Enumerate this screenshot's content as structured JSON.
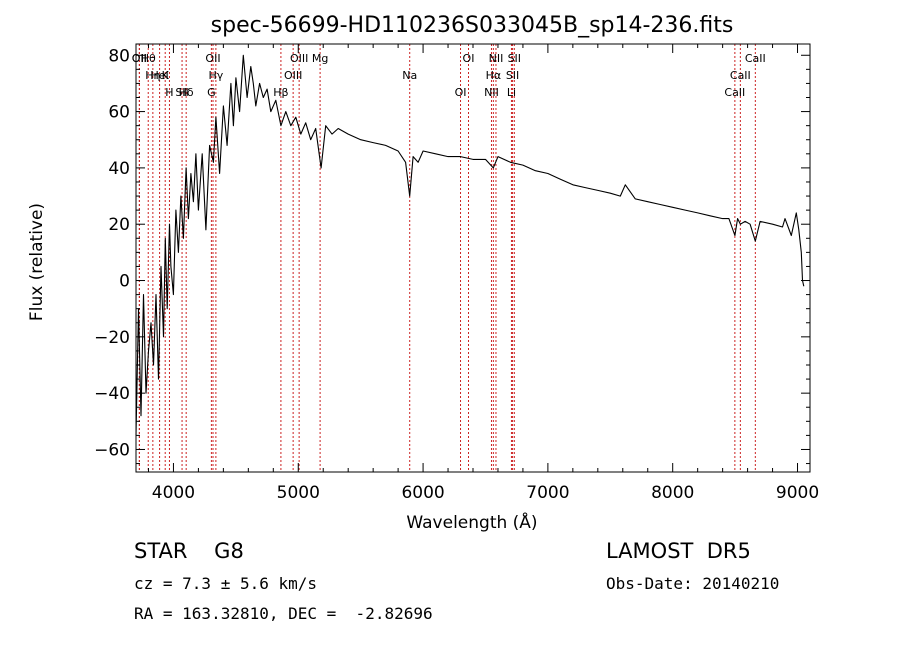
{
  "chart_data": {
    "type": "line",
    "title": "spec-56699-HD110236S033045B_sp14-236.fits",
    "xlabel": "Wavelength (Å)",
    "ylabel": "Flux (relative)",
    "xlim": [
      3700,
      9100
    ],
    "ylim": [
      -68,
      84
    ],
    "xticks": [
      4000,
      5000,
      6000,
      7000,
      8000,
      9000
    ],
    "xtick_labels": [
      "4000",
      "5000",
      "6000",
      "7000",
      "8000",
      "9000"
    ],
    "yticks": [
      -60,
      -40,
      -20,
      0,
      20,
      40,
      60,
      80
    ],
    "ytick_labels": [
      "−60",
      "−40",
      "−20",
      "0",
      "20",
      "40",
      "60",
      "80"
    ],
    "grid": false,
    "line_color": "#000000",
    "marker_color": "#cc2222",
    "series": [
      {
        "x": [
          3700,
          3720,
          3740,
          3760,
          3780,
          3800,
          3820,
          3840,
          3860,
          3880,
          3900,
          3920,
          3935,
          3950,
          3968,
          3980,
          4000,
          4020,
          4040,
          4060,
          4080,
          4101,
          4120,
          4140,
          4160,
          4180,
          4200,
          4230,
          4260,
          4290,
          4320,
          4340,
          4370,
          4400,
          4430,
          4460,
          4480,
          4500,
          4530,
          4560,
          4590,
          4620,
          4640,
          4660,
          4690,
          4720,
          4750,
          4780,
          4820,
          4861,
          4900,
          4940,
          4980,
          5020,
          5060,
          5100,
          5140,
          5183,
          5220,
          5270,
          5320,
          5400,
          5500,
          5600,
          5700,
          5800,
          5860,
          5893,
          5920,
          5960,
          6000,
          6100,
          6200,
          6300,
          6400,
          6500,
          6563,
          6600,
          6700,
          6800,
          6900,
          7000,
          7100,
          7200,
          7300,
          7400,
          7500,
          7580,
          7620,
          7700,
          7800,
          7900,
          8000,
          8100,
          8200,
          8300,
          8400,
          8450,
          8498,
          8520,
          8542,
          8580,
          8620,
          8662,
          8700,
          8800,
          8880,
          8900,
          8950,
          8990,
          9010,
          9030,
          9040,
          9050
        ],
        "y": [
          -55,
          -10,
          -48,
          -5,
          -40,
          -25,
          -15,
          -30,
          -5,
          -35,
          5,
          -20,
          15,
          -10,
          20,
          5,
          -5,
          25,
          10,
          30,
          15,
          40,
          22,
          38,
          28,
          45,
          25,
          45,
          18,
          48,
          42,
          58,
          38,
          62,
          48,
          70,
          55,
          72,
          60,
          80,
          65,
          76,
          70,
          62,
          70,
          65,
          68,
          60,
          64,
          55,
          60,
          55,
          58,
          52,
          56,
          50,
          54,
          40,
          55,
          52,
          54,
          52,
          50,
          49,
          48,
          46,
          42,
          30,
          44,
          42,
          46,
          45,
          44,
          44,
          43,
          43,
          40,
          44,
          42,
          41,
          39,
          38,
          36,
          34,
          33,
          32,
          31,
          30,
          34,
          29,
          28,
          27,
          26,
          25,
          24,
          23,
          22,
          22,
          16,
          22,
          20,
          21,
          20,
          14,
          21,
          20,
          19,
          22,
          16,
          24,
          18,
          10,
          0,
          -2
        ]
      }
    ],
    "line_markers": [
      {
        "label": "Hθ",
        "x": 3798
      },
      {
        "label": "K",
        "x": 3934
      },
      {
        "label": "Hδ",
        "x": 4102
      },
      {
        "label": "OII",
        "x": 3727
      },
      {
        "label": "HeI",
        "x": 3889
      },
      {
        "label": "SII",
        "x": 4069
      },
      {
        "label": "OII",
        "x": 3727
      },
      {
        "label": "Hη",
        "x": 3835
      },
      {
        "label": "H",
        "x": 3968
      },
      {
        "label": "OII",
        "x": 4317
      },
      {
        "label": "Hγ",
        "x": 4340
      },
      {
        "label": "G",
        "x": 4304
      },
      {
        "label": "OIII",
        "x": 5007
      },
      {
        "label": "OIII",
        "x": 4959
      },
      {
        "label": "Hβ",
        "x": 4861
      },
      {
        "label": "Mg",
        "x": 5175
      },
      {
        "label": "Na",
        "x": 5893
      },
      {
        "label": "OI",
        "x": 6300
      },
      {
        "label": "OI",
        "x": 6364
      },
      {
        "label": "Hα",
        "x": 6563
      },
      {
        "label": "NII",
        "x": 6548
      },
      {
        "label": "NII",
        "x": 6584
      },
      {
        "label": "SII",
        "x": 6717
      },
      {
        "label": "Li",
        "x": 6708
      },
      {
        "label": "SII",
        "x": 6731
      },
      {
        "label": "CaII",
        "x": 8542
      },
      {
        "label": "CaII",
        "x": 8498
      },
      {
        "label": "CaII",
        "x": 8662
      }
    ]
  },
  "info": {
    "star_type": "STAR    G8",
    "survey": "LAMOST  DR5",
    "cz": "cz = 7.3 ± 5.6 km/s",
    "obs_date": "Obs-Date: 20140210",
    "radec": "RA = 163.32810, DEC =  -2.82696"
  }
}
